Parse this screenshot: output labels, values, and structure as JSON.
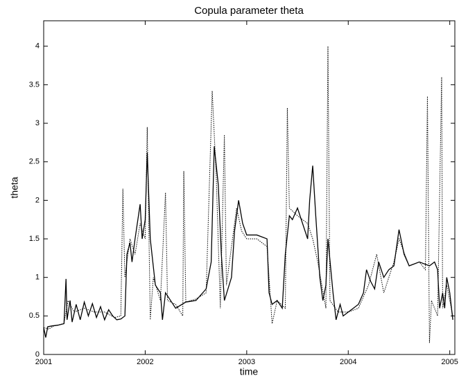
{
  "chart_data": {
    "type": "line",
    "title": "Copula parameter theta",
    "xlabel": "time",
    "ylabel": "theta",
    "xlim": [
      2001,
      2005.05
    ],
    "ylim": [
      0,
      4.33
    ],
    "xticks": [
      2001,
      2002,
      2003,
      2004,
      2005
    ],
    "yticks": [
      0,
      0.5,
      1,
      1.5,
      2,
      2.5,
      3,
      3.5,
      4
    ],
    "series": [
      {
        "color": "#000000",
        "style": "solid",
        "x": [
          2001.0,
          2001.02,
          2001.04,
          2001.08,
          2001.14,
          2001.2,
          2001.22,
          2001.23,
          2001.26,
          2001.28,
          2001.32,
          2001.36,
          2001.4,
          2001.44,
          2001.48,
          2001.52,
          2001.56,
          2001.6,
          2001.64,
          2001.68,
          2001.72,
          2001.76,
          2001.8,
          2001.82,
          2001.85,
          2001.87,
          2001.9,
          2001.95,
          2001.97,
          2002.0,
          2002.02,
          2002.05,
          2002.1,
          2002.15,
          2002.17,
          2002.2,
          2002.25,
          2002.3,
          2002.4,
          2002.5,
          2002.6,
          2002.65,
          2002.68,
          2002.72,
          2002.75,
          2002.78,
          2002.85,
          2002.88,
          2002.92,
          2002.96,
          2003.0,
          2003.1,
          2003.2,
          2003.22,
          2003.25,
          2003.3,
          2003.35,
          2003.38,
          2003.42,
          2003.45,
          2003.5,
          2003.55,
          2003.6,
          2003.62,
          2003.65,
          2003.68,
          2003.72,
          2003.75,
          2003.78,
          2003.8,
          2003.85,
          2003.88,
          2003.92,
          2003.95,
          2004.0,
          2004.1,
          2004.15,
          2004.18,
          2004.22,
          2004.26,
          2004.3,
          2004.35,
          2004.4,
          2004.45,
          2004.5,
          2004.55,
          2004.6,
          2004.7,
          2004.8,
          2004.85,
          2004.88,
          2004.9,
          2004.93,
          2004.95,
          2004.97,
          2005.0,
          2005.03
        ],
        "values": [
          0.35,
          0.22,
          0.36,
          0.37,
          0.38,
          0.4,
          0.98,
          0.45,
          0.7,
          0.42,
          0.65,
          0.45,
          0.68,
          0.5,
          0.66,
          0.48,
          0.62,
          0.45,
          0.58,
          0.5,
          0.45,
          0.46,
          0.5,
          1.3,
          1.45,
          1.2,
          1.5,
          1.95,
          1.5,
          1.75,
          2.62,
          1.5,
          0.9,
          0.8,
          0.45,
          0.8,
          0.7,
          0.6,
          0.68,
          0.7,
          0.85,
          1.2,
          2.7,
          2.2,
          1.3,
          0.7,
          1.0,
          1.6,
          2.0,
          1.7,
          1.55,
          1.55,
          1.5,
          0.8,
          0.65,
          0.7,
          0.6,
          1.3,
          1.8,
          1.75,
          1.9,
          1.7,
          1.5,
          2.0,
          2.45,
          1.8,
          1.0,
          0.7,
          0.9,
          1.5,
          0.8,
          0.45,
          0.65,
          0.5,
          0.55,
          0.65,
          0.8,
          1.1,
          0.95,
          0.85,
          1.2,
          1.0,
          1.1,
          1.15,
          1.62,
          1.3,
          1.15,
          1.2,
          1.15,
          1.2,
          1.1,
          0.6,
          0.8,
          0.6,
          1.0,
          0.8,
          0.45
        ]
      },
      {
        "color": "#000000",
        "style": "dotted",
        "x": [
          2001.0,
          2001.05,
          2001.1,
          2001.2,
          2001.24,
          2001.3,
          2001.4,
          2001.5,
          2001.6,
          2001.7,
          2001.76,
          2001.78,
          2001.8,
          2001.85,
          2001.9,
          2001.95,
          2002.0,
          2002.02,
          2002.05,
          2002.08,
          2002.15,
          2002.2,
          2002.22,
          2002.3,
          2002.37,
          2002.38,
          2002.4,
          2002.5,
          2002.6,
          2002.66,
          2002.7,
          2002.74,
          2002.78,
          2002.8,
          2002.85,
          2002.9,
          2002.95,
          2003.0,
          2003.1,
          2003.2,
          2003.25,
          2003.3,
          2003.38,
          2003.4,
          2003.42,
          2003.5,
          2003.6,
          2003.65,
          2003.7,
          2003.78,
          2003.8,
          2003.82,
          2003.9,
          2004.0,
          2004.1,
          2004.2,
          2004.28,
          2004.35,
          2004.45,
          2004.5,
          2004.6,
          2004.7,
          2004.76,
          2004.78,
          2004.8,
          2004.82,
          2004.88,
          2004.92,
          2004.93,
          2004.97,
          2005.03
        ],
        "values": [
          0.35,
          0.33,
          0.37,
          0.4,
          0.7,
          0.55,
          0.6,
          0.55,
          0.55,
          0.48,
          0.5,
          2.15,
          1.0,
          1.5,
          1.3,
          1.7,
          1.5,
          2.95,
          0.45,
          1.0,
          0.7,
          2.1,
          0.7,
          0.65,
          0.5,
          2.38,
          0.68,
          0.72,
          0.8,
          3.42,
          2.3,
          0.6,
          2.85,
          0.9,
          1.4,
          1.9,
          1.6,
          1.5,
          1.5,
          1.4,
          0.4,
          0.7,
          0.6,
          3.2,
          1.9,
          1.8,
          1.7,
          1.5,
          1.2,
          0.6,
          4.0,
          0.7,
          0.55,
          0.55,
          0.6,
          0.9,
          1.3,
          0.8,
          1.2,
          1.5,
          1.15,
          1.2,
          1.1,
          3.35,
          0.15,
          0.7,
          0.5,
          3.6,
          0.6,
          0.9,
          0.5
        ]
      }
    ]
  }
}
